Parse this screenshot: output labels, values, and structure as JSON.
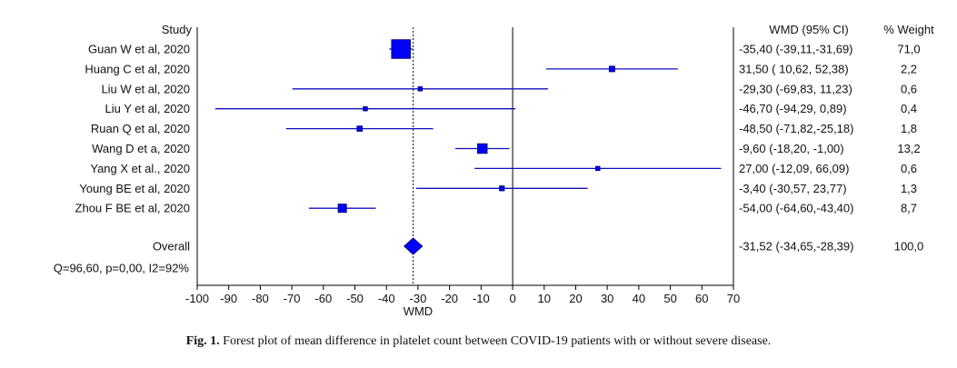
{
  "chart_data": {
    "type": "forest",
    "studies_header": "Study",
    "effect_header": "WMD (95% CI)",
    "weight_header": "% Weight",
    "xlabel": "WMD",
    "xlim": [
      -100,
      70
    ],
    "xticks": [
      "-100",
      "-90",
      "-80",
      "-70",
      "-60",
      "-50",
      "-40",
      "-30",
      "-20",
      "-10",
      "0",
      "10",
      "20",
      "30",
      "40",
      "50",
      "60",
      "70"
    ],
    "studies": [
      {
        "name": "Guan W et al, 2020",
        "est": -35.4,
        "lo": -39.11,
        "hi": -31.69,
        "weight": 71.0,
        "ci_text": "-35,40 (-39,11,-31,69)",
        "weight_text": "71,0"
      },
      {
        "name": "Huang C et al, 2020",
        "est": 31.5,
        "lo": 10.62,
        "hi": 52.38,
        "weight": 2.2,
        "ci_text": "31,50 ( 10,62, 52,38)",
        "weight_text": "2,2"
      },
      {
        "name": "Liu W et al, 2020",
        "est": -29.3,
        "lo": -69.83,
        "hi": 11.23,
        "weight": 0.6,
        "ci_text": "-29,30 (-69,83, 11,23)",
        "weight_text": "0,6"
      },
      {
        "name": "Liu Y et al, 2020",
        "est": -46.7,
        "lo": -94.29,
        "hi": 0.89,
        "weight": 0.4,
        "ci_text": "-46,70 (-94,29, 0,89)",
        "weight_text": "0,4"
      },
      {
        "name": "Ruan Q et al, 2020",
        "est": -48.5,
        "lo": -71.82,
        "hi": -25.18,
        "weight": 1.8,
        "ci_text": "-48,50 (-71,82,-25,18)",
        "weight_text": "1,8"
      },
      {
        "name": "Wang D et a, 2020",
        "est": -9.6,
        "lo": -18.2,
        "hi": -1.0,
        "weight": 13.2,
        "ci_text": "-9,60 (-18,20, -1,00)",
        "weight_text": "13,2"
      },
      {
        "name": "Yang X et al., 2020",
        "est": 27.0,
        "lo": -12.09,
        "hi": 66.09,
        "weight": 0.6,
        "ci_text": "27,00 (-12,09, 66,09)",
        "weight_text": "0,6"
      },
      {
        "name": "Young BE et al, 2020",
        "est": -3.4,
        "lo": -30.57,
        "hi": 23.77,
        "weight": 1.3,
        "ci_text": "-3,40 (-30,57, 23,77)",
        "weight_text": "1,3"
      },
      {
        "name": "Zhou F BE et al, 2020",
        "est": -54.0,
        "lo": -64.6,
        "hi": -43.4,
        "weight": 8.7,
        "ci_text": "-54,00 (-64,60,-43,40)",
        "weight_text": "8,7"
      }
    ],
    "overall": {
      "name": "Overall",
      "est": -31.52,
      "lo": -34.65,
      "hi": -28.39,
      "weight": 100.0,
      "ci_text": "-31,52 (-34,65,-28,39)",
      "weight_text": "100,0"
    },
    "heterogeneity": "Q=96,60, p=0,00, I2=92%",
    "colors": {
      "marker": "#0000ff",
      "ci_line": "#1010c0",
      "axis": "#000000"
    }
  },
  "caption": {
    "label": "Fig. 1.",
    "text": "Forest plot of mean difference in platelet count between COVID-19 patients with or without severe disease."
  }
}
